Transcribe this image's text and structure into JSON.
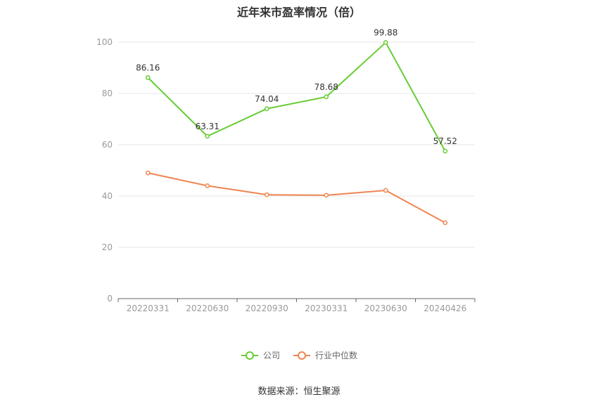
{
  "source": "数据来源：恒生聚源",
  "chart_data": {
    "type": "line",
    "title": "近年来市盈率情况（倍）",
    "categories": [
      "20220331",
      "20220630",
      "20220930",
      "20230331",
      "20230630",
      "20240426"
    ],
    "ylim": [
      0,
      100
    ],
    "yticks": [
      0,
      20,
      40,
      60,
      80,
      100
    ],
    "grid": true,
    "legend_position": "bottom",
    "series": [
      {
        "name": "公司",
        "color": "#66cc33",
        "values": [
          86.16,
          63.31,
          74.04,
          78.68,
          99.88,
          57.52
        ],
        "labels": [
          "86.16",
          "63.31",
          "74.04",
          "78.68",
          "99.88",
          "57.52"
        ]
      },
      {
        "name": "行业中位数",
        "color": "#f08552",
        "values": [
          49.0,
          44.0,
          40.5,
          40.3,
          42.2,
          29.6
        ]
      }
    ]
  }
}
